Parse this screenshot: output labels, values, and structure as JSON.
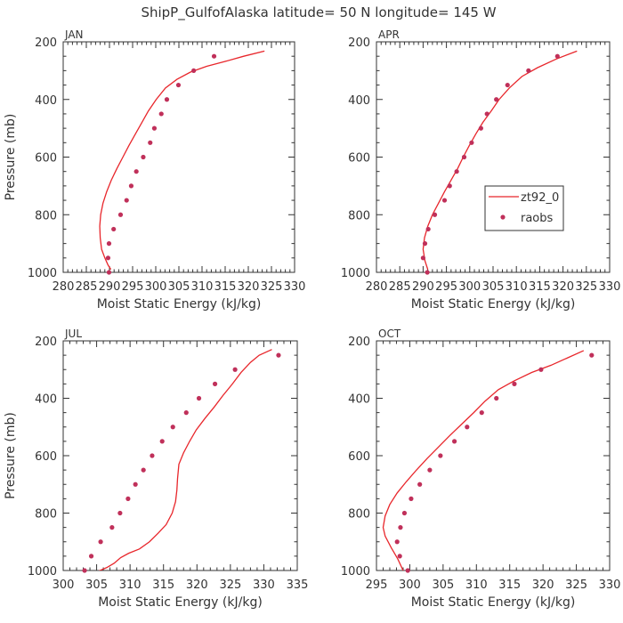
{
  "page": {
    "title": "ShipP_GulfofAlaska   latitude= 50 N longitude= 145 W"
  },
  "legend": {
    "line_label": "zt92_0",
    "point_label": "raobs"
  },
  "colors": {
    "model_line": "#e8262b",
    "raobs_point": "#c0305a",
    "axis": "#333333",
    "text": "#333333"
  },
  "chart_data": [
    {
      "type": "line",
      "panel_label": "JAN",
      "xlabel": "Moist Static Energy (kJ/kg)",
      "ylabel": "Pressure (mb)",
      "xlim": [
        280,
        330
      ],
      "xticks": [
        280,
        285,
        290,
        295,
        300,
        305,
        310,
        315,
        320,
        325,
        330
      ],
      "ylim": [
        1000,
        200
      ],
      "yticks": [
        200,
        400,
        600,
        800,
        1000
      ],
      "series": [
        {
          "name": "zt92_0",
          "style": "line",
          "points": [
            [
              290.3,
              990
            ],
            [
              289.7,
              975
            ],
            [
              289.0,
              950
            ],
            [
              288.3,
              920
            ],
            [
              288.0,
              880
            ],
            [
              287.9,
              840
            ],
            [
              288.1,
              800
            ],
            [
              288.6,
              760
            ],
            [
              289.4,
              720
            ],
            [
              290.4,
              680
            ],
            [
              291.6,
              640
            ],
            [
              292.9,
              600
            ],
            [
              294.2,
              560
            ],
            [
              295.6,
              520
            ],
            [
              297.0,
              480
            ],
            [
              298.4,
              440
            ],
            [
              300.1,
              400
            ],
            [
              302.1,
              360
            ],
            [
              304.6,
              330
            ],
            [
              307.5,
              305
            ],
            [
              311.0,
              285
            ],
            [
              315.0,
              268
            ],
            [
              319.0,
              250
            ],
            [
              323.5,
              232
            ]
          ]
        },
        {
          "name": "raobs",
          "style": "points",
          "points": [
            [
              289.9,
              1000
            ],
            [
              289.7,
              950
            ],
            [
              289.9,
              900
            ],
            [
              290.9,
              850
            ],
            [
              292.4,
              800
            ],
            [
              293.7,
              750
            ],
            [
              294.7,
              700
            ],
            [
              295.8,
              650
            ],
            [
              297.3,
              600
            ],
            [
              298.8,
              550
            ],
            [
              299.7,
              500
            ],
            [
              301.2,
              450
            ],
            [
              302.4,
              400
            ],
            [
              304.9,
              350
            ],
            [
              308.2,
              300
            ],
            [
              312.6,
              250
            ]
          ]
        }
      ]
    },
    {
      "type": "line",
      "panel_label": "APR",
      "xlabel": "Moist Static Energy (kJ/kg)",
      "ylabel": "Pressure (mb)",
      "xlim": [
        280,
        330
      ],
      "xticks": [
        280,
        285,
        290,
        295,
        300,
        305,
        310,
        315,
        320,
        325,
        330
      ],
      "ylim": [
        1000,
        200
      ],
      "yticks": [
        200,
        400,
        600,
        800,
        1000
      ],
      "series": [
        {
          "name": "zt92_0",
          "style": "line",
          "points": [
            [
              291.0,
              990
            ],
            [
              290.4,
              960
            ],
            [
              290.0,
              920
            ],
            [
              290.3,
              880
            ],
            [
              291.0,
              840
            ],
            [
              292.0,
              800
            ],
            [
              293.3,
              760
            ],
            [
              294.6,
              720
            ],
            [
              296.0,
              680
            ],
            [
              297.4,
              640
            ],
            [
              298.6,
              600
            ],
            [
              299.9,
              560
            ],
            [
              301.3,
              520
            ],
            [
              302.8,
              480
            ],
            [
              304.6,
              440
            ],
            [
              306.3,
              400
            ],
            [
              308.5,
              360
            ],
            [
              311.2,
              320
            ],
            [
              314.5,
              290
            ],
            [
              318.5,
              260
            ],
            [
              323.0,
              232
            ]
          ]
        },
        {
          "name": "raobs",
          "style": "points",
          "points": [
            [
              290.9,
              1000
            ],
            [
              290.0,
              950
            ],
            [
              290.4,
              900
            ],
            [
              291.1,
              850
            ],
            [
              292.5,
              800
            ],
            [
              294.6,
              750
            ],
            [
              295.7,
              700
            ],
            [
              297.2,
              650
            ],
            [
              298.8,
              600
            ],
            [
              300.4,
              550
            ],
            [
              302.4,
              500
            ],
            [
              303.7,
              450
            ],
            [
              305.7,
              400
            ],
            [
              308.1,
              350
            ],
            [
              312.6,
              300
            ],
            [
              318.8,
              250
            ]
          ]
        }
      ]
    },
    {
      "type": "line",
      "panel_label": "JUL",
      "xlabel": "Moist Static Energy (kJ/kg)",
      "ylabel": "Pressure (mb)",
      "xlim": [
        300,
        335
      ],
      "xticks": [
        300,
        305,
        310,
        315,
        320,
        325,
        330,
        335
      ],
      "ylim": [
        1000,
        200
      ],
      "yticks": [
        200,
        400,
        600,
        800,
        1000
      ],
      "series": [
        {
          "name": "zt92_0",
          "style": "line",
          "points": [
            [
              304.2,
              1025
            ],
            [
              305.0,
              1005
            ],
            [
              306.5,
              990
            ],
            [
              307.6,
              975
            ],
            [
              308.6,
              955
            ],
            [
              309.8,
              940
            ],
            [
              311.4,
              925
            ],
            [
              312.9,
              900
            ],
            [
              314.2,
              870
            ],
            [
              315.4,
              840
            ],
            [
              316.3,
              800
            ],
            [
              316.8,
              760
            ],
            [
              317.0,
              720
            ],
            [
              317.1,
              680
            ],
            [
              317.3,
              630
            ],
            [
              318.0,
              590
            ],
            [
              318.9,
              550
            ],
            [
              319.9,
              510
            ],
            [
              321.2,
              470
            ],
            [
              322.6,
              430
            ],
            [
              323.9,
              390
            ],
            [
              325.3,
              350
            ],
            [
              326.6,
              310
            ],
            [
              328.0,
              275
            ],
            [
              329.3,
              250
            ],
            [
              331.2,
              230
            ]
          ]
        },
        {
          "name": "raobs",
          "style": "points",
          "points": [
            [
              303.2,
              1000
            ],
            [
              304.2,
              950
            ],
            [
              305.6,
              900
            ],
            [
              307.3,
              850
            ],
            [
              308.5,
              800
            ],
            [
              309.7,
              750
            ],
            [
              310.8,
              700
            ],
            [
              312.0,
              650
            ],
            [
              313.3,
              600
            ],
            [
              314.8,
              550
            ],
            [
              316.4,
              500
            ],
            [
              318.4,
              450
            ],
            [
              320.3,
              400
            ],
            [
              322.7,
              350
            ],
            [
              325.7,
              300
            ],
            [
              332.2,
              250
            ]
          ]
        }
      ]
    },
    {
      "type": "line",
      "panel_label": "OCT",
      "xlabel": "Moist Static Energy (kJ/kg)",
      "ylabel": "Pressure (mb)",
      "xlim": [
        295,
        330
      ],
      "xticks": [
        295,
        300,
        305,
        310,
        315,
        320,
        325,
        330
      ],
      "ylim": [
        1000,
        200
      ],
      "yticks": [
        200,
        400,
        600,
        800,
        1000
      ],
      "series": [
        {
          "name": "zt92_0",
          "style": "line",
          "points": [
            [
              299.1,
              1005
            ],
            [
              298.2,
              960
            ],
            [
              297.2,
              920
            ],
            [
              296.3,
              880
            ],
            [
              296.0,
              850
            ],
            [
              296.3,
              810
            ],
            [
              297.0,
              770
            ],
            [
              298.1,
              730
            ],
            [
              299.5,
              690
            ],
            [
              301.0,
              650
            ],
            [
              302.6,
              610
            ],
            [
              304.3,
              570
            ],
            [
              306.0,
              530
            ],
            [
              307.8,
              490
            ],
            [
              309.6,
              450
            ],
            [
              311.3,
              410
            ],
            [
              313.3,
              370
            ],
            [
              315.6,
              340
            ],
            [
              318.3,
              310
            ],
            [
              321.2,
              285
            ],
            [
              323.6,
              260
            ],
            [
              326.1,
              234
            ]
          ]
        },
        {
          "name": "raobs",
          "style": "points",
          "points": [
            [
              299.7,
              1000
            ],
            [
              298.5,
              950
            ],
            [
              298.1,
              900
            ],
            [
              298.6,
              850
            ],
            [
              299.2,
              800
            ],
            [
              300.2,
              750
            ],
            [
              301.5,
              700
            ],
            [
              303.0,
              650
            ],
            [
              304.6,
              600
            ],
            [
              306.7,
              550
            ],
            [
              308.6,
              500
            ],
            [
              310.8,
              450
            ],
            [
              313.0,
              400
            ],
            [
              315.7,
              350
            ],
            [
              319.7,
              300
            ],
            [
              327.3,
              250
            ]
          ]
        }
      ]
    }
  ]
}
